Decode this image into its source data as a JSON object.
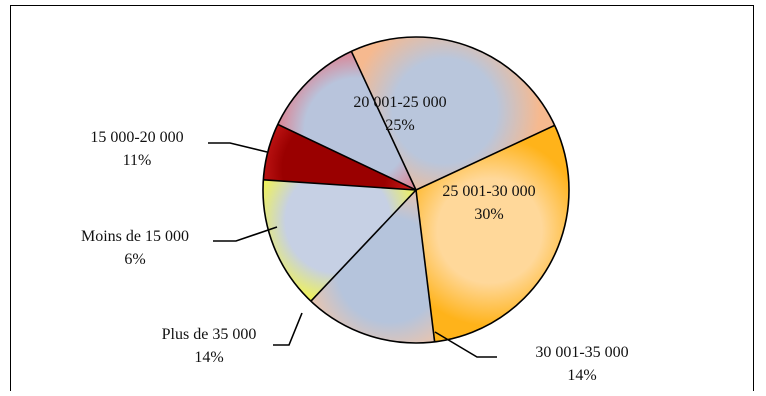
{
  "chart_data": {
    "type": "pie",
    "title": "",
    "slices": [
      {
        "label": "20 001-25 000",
        "percent_label": "25%",
        "value": 25,
        "color": "#f6b98f",
        "inner_color": "#b9c6dc"
      },
      {
        "label": "25 001-30 000",
        "percent_label": "30%",
        "value": 30,
        "color": "#ffb31a",
        "inner_color": "#ffd89a"
      },
      {
        "label": "30 001-35 000",
        "percent_label": "14%",
        "value": 14,
        "color": "#f8c4a0",
        "inner_color": "#b5c4dc"
      },
      {
        "label": "Plus de 35 000",
        "percent_label": "14%",
        "value": 14,
        "color": "#ffff22",
        "inner_color": "#c6d0e4"
      },
      {
        "label": "Moins de 15 000",
        "percent_label": "6%",
        "value": 6,
        "color": "#e52a2a",
        "inner_color": "#9a0000"
      },
      {
        "label": "15 000-20 000",
        "percent_label": "11%",
        "value": 11,
        "color": "#ef5f6a",
        "inner_color": "#b8c4dc"
      }
    ],
    "legend": "none"
  }
}
